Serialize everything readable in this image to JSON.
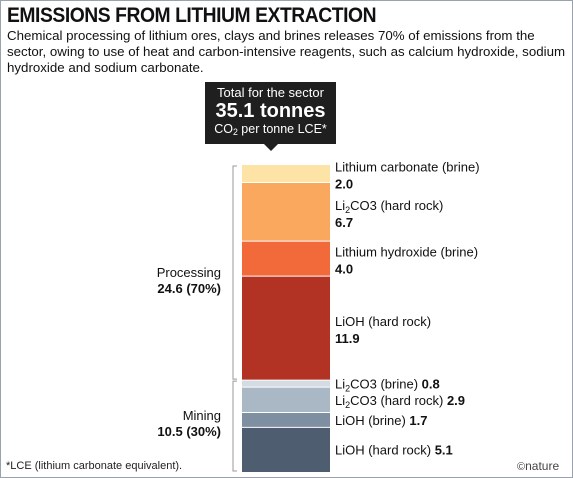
{
  "title": "EMISSIONS FROM LITHIUM EXTRACTION",
  "subtitle": "Chemical processing of lithium ores, clays and brines releases 70% of emissions from the sector, owing to use of heat and carbon-intensive reagents, such as calcium hydroxide, sodium hydroxide and sodium carbonate.",
  "callout": {
    "line1": "Total for the sector",
    "value": "35.1 tonnes",
    "unit_prefix": "CO",
    "unit_sub": "2",
    "unit_suffix": " per tonne LCE*"
  },
  "groups": {
    "processing": {
      "label": "Processing",
      "value": "24.6 (70%)"
    },
    "mining": {
      "label": "Mining",
      "value": "10.5 (30%)"
    }
  },
  "footnote": "*LCE (lithium carbonate equivalent).",
  "credit": "nature",
  "colors": {
    "lithium_carbonate_brine": "#fde3a6",
    "li2co3_hard_rock_processing": "#f9a85d",
    "lithium_hydroxide_brine": "#f2693a",
    "lioh_hard_rock_processing": "#b23224",
    "li2co3_brine_mining": "#d4dbe2",
    "li2co3_hard_rock_mining": "#aab7c4",
    "lioh_brine_mining": "#7e8fa1",
    "lioh_hard_rock_mining": "#4e5d6f"
  },
  "chart_data": {
    "type": "bar",
    "stacked": true,
    "total": 35.1,
    "unit": "tonnes CO2 per tonne LCE",
    "series": [
      {
        "label_prefix": "Lithium carbonate (brine)",
        "label_sub": "",
        "label_suffix": "",
        "value": 2.0,
        "value_label": "2.0",
        "group": "processing",
        "color_key": "lithium_carbonate_brine",
        "inline_value": false
      },
      {
        "label_prefix": "Li",
        "label_sub": "2",
        "label_suffix": "CO3 (hard rock)",
        "value": 6.7,
        "value_label": "6.7",
        "group": "processing",
        "color_key": "li2co3_hard_rock_processing",
        "inline_value": false
      },
      {
        "label_prefix": "Lithium hydroxide (brine)",
        "label_sub": "",
        "label_suffix": "",
        "value": 4.0,
        "value_label": "4.0",
        "group": "processing",
        "color_key": "lithium_hydroxide_brine",
        "inline_value": false
      },
      {
        "label_prefix": "LiOH (hard rock)",
        "label_sub": "",
        "label_suffix": "",
        "value": 11.9,
        "value_label": "11.9",
        "group": "processing",
        "color_key": "lioh_hard_rock_processing",
        "inline_value": false
      },
      {
        "label_prefix": "Li",
        "label_sub": "2",
        "label_suffix": "CO3 (brine)",
        "value": 0.8,
        "value_label": "0.8",
        "group": "mining",
        "color_key": "li2co3_brine_mining",
        "inline_value": true
      },
      {
        "label_prefix": "Li",
        "label_sub": "2",
        "label_suffix": "CO3 (hard rock)",
        "value": 2.9,
        "value_label": "2.9",
        "group": "mining",
        "color_key": "li2co3_hard_rock_mining",
        "inline_value": true
      },
      {
        "label_prefix": "LiOH (brine)",
        "label_sub": "",
        "label_suffix": "",
        "value": 1.7,
        "value_label": "1.7",
        "group": "mining",
        "color_key": "lioh_brine_mining",
        "inline_value": true
      },
      {
        "label_prefix": "LiOH (hard rock)",
        "label_sub": "",
        "label_suffix": "",
        "value": 5.1,
        "value_label": "5.1",
        "group": "mining",
        "color_key": "lioh_hard_rock_mining",
        "inline_value": true
      }
    ]
  }
}
